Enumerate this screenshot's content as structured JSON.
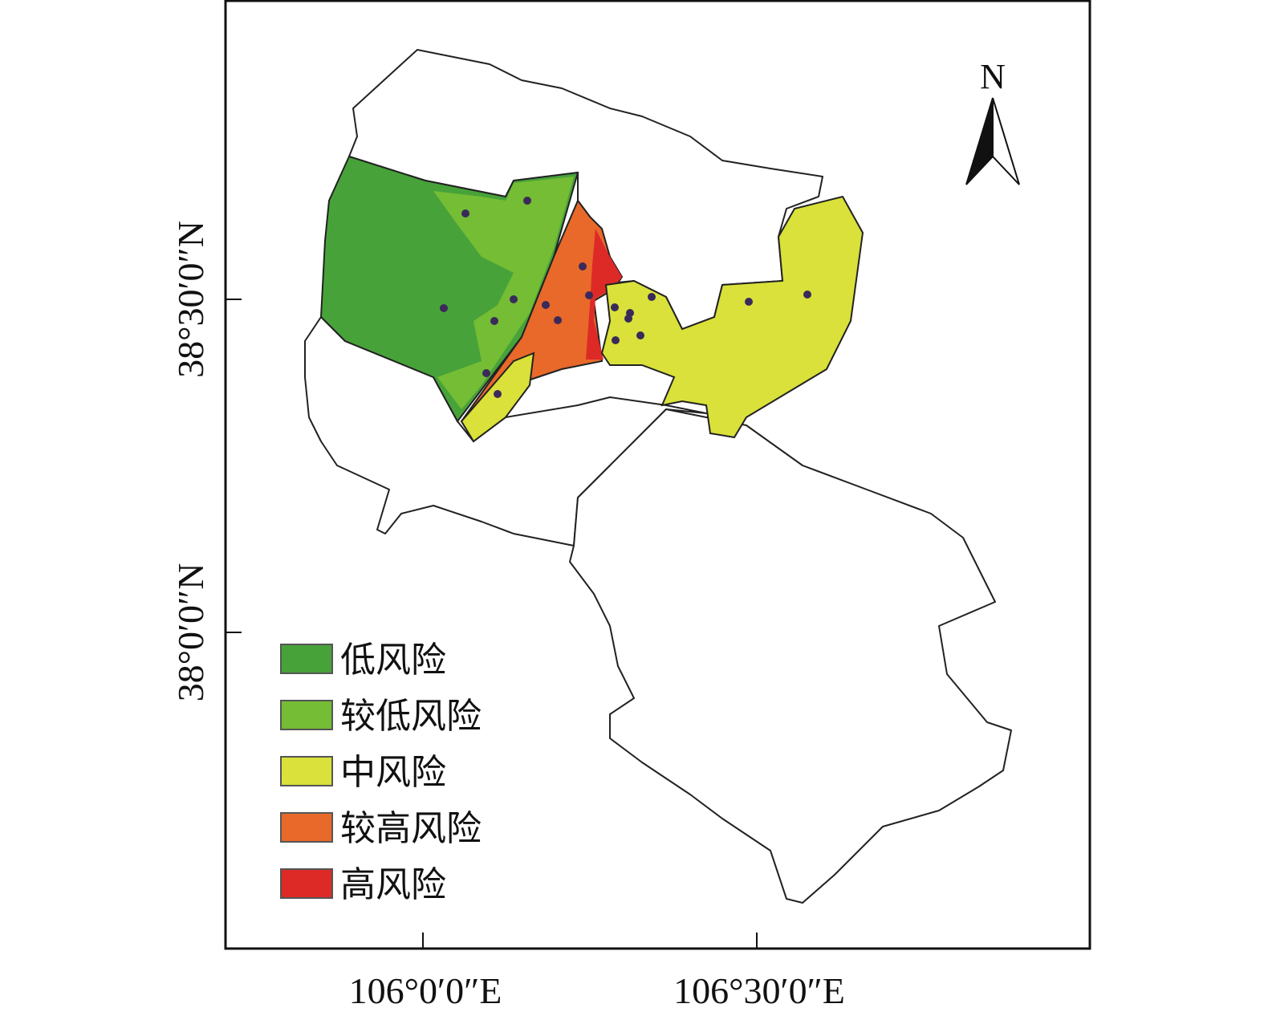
{
  "north_label": "N",
  "x_ticks": [
    "106°0′0″E",
    "106°30′0″E"
  ],
  "y_ticks": [
    "38°30′0″N",
    "38°0′0″N"
  ],
  "legend": [
    {
      "label": "低风险",
      "color": "#48a23a"
    },
    {
      "label": "较低风险",
      "color": "#74bd34"
    },
    {
      "label": "中风险",
      "color": "#d9e13a"
    },
    {
      "label": "较高风险",
      "color": "#e8692a"
    },
    {
      "label": "高风险",
      "color": "#dd2a27"
    }
  ]
}
